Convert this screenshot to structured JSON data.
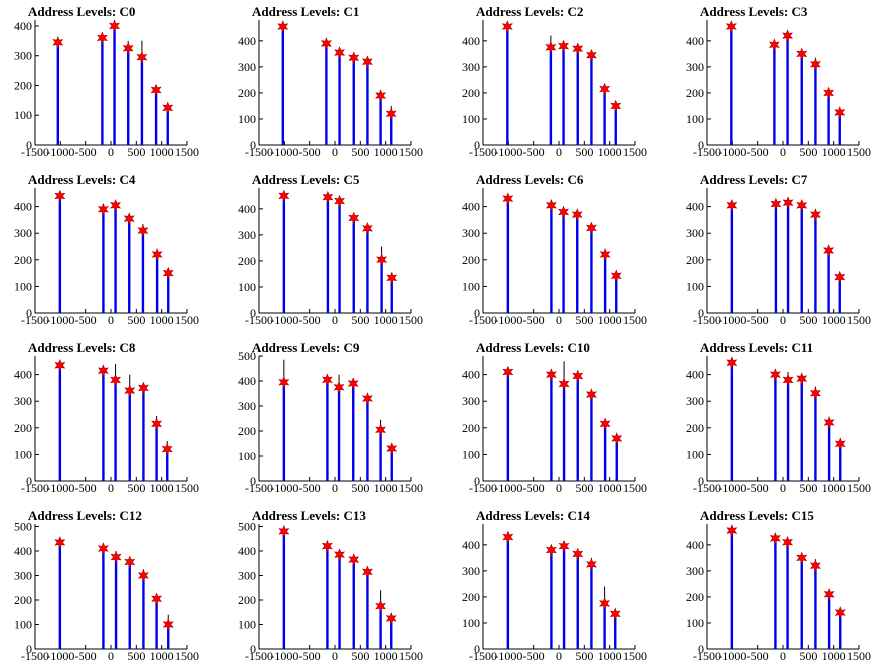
{
  "chart_data": [
    {
      "type": "bar",
      "title": "Address Levels: C0",
      "xlim": [
        -1500,
        1500
      ],
      "ylim": [
        0,
        420
      ],
      "xticks": [
        -1500,
        -1000,
        -500,
        0,
        500,
        1000,
        1500
      ],
      "yticks": [
        0,
        100,
        200,
        300,
        400
      ],
      "bars": [
        {
          "x": -1050,
          "y": 340,
          "mark": 345
        },
        {
          "x": -170,
          "y": 350,
          "mark": 360
        },
        {
          "x": 70,
          "y": 420,
          "mark": 400
        },
        {
          "x": 340,
          "y": 350,
          "mark": 325
        },
        {
          "x": 610,
          "y": 350,
          "mark": 295
        },
        {
          "x": 890,
          "y": 200,
          "mark": 185
        },
        {
          "x": 1120,
          "y": 135,
          "mark": 125
        }
      ]
    },
    {
      "type": "bar",
      "title": "Address Levels: C1",
      "xlim": [
        -1500,
        1500
      ],
      "ylim": [
        0,
        480
      ],
      "xticks": [
        -1500,
        -1000,
        -500,
        0,
        500,
        1000,
        1500
      ],
      "yticks": [
        0,
        100,
        200,
        300,
        400
      ],
      "bars": [
        {
          "x": -1030,
          "y": 470,
          "mark": 455
        },
        {
          "x": -170,
          "y": 400,
          "mark": 390
        },
        {
          "x": 90,
          "y": 370,
          "mark": 355
        },
        {
          "x": 370,
          "y": 355,
          "mark": 335
        },
        {
          "x": 640,
          "y": 335,
          "mark": 320
        },
        {
          "x": 900,
          "y": 195,
          "mark": 190
        },
        {
          "x": 1110,
          "y": 150,
          "mark": 120
        }
      ]
    },
    {
      "type": "bar",
      "title": "Address Levels: C2",
      "xlim": [
        -1500,
        1500
      ],
      "ylim": [
        0,
        480
      ],
      "xticks": [
        -1500,
        -1000,
        -500,
        0,
        500,
        1000,
        1500
      ],
      "yticks": [
        0,
        100,
        200,
        300,
        400
      ],
      "bars": [
        {
          "x": -1020,
          "y": 470,
          "mark": 455
        },
        {
          "x": -160,
          "y": 420,
          "mark": 375
        },
        {
          "x": 90,
          "y": 385,
          "mark": 380
        },
        {
          "x": 370,
          "y": 380,
          "mark": 370
        },
        {
          "x": 640,
          "y": 360,
          "mark": 345
        },
        {
          "x": 900,
          "y": 225,
          "mark": 215
        },
        {
          "x": 1120,
          "y": 155,
          "mark": 150
        }
      ]
    },
    {
      "type": "bar",
      "title": "Address Levels: C3",
      "xlim": [
        -1500,
        1500
      ],
      "ylim": [
        0,
        480
      ],
      "xticks": [
        -1500,
        -1000,
        -500,
        0,
        500,
        1000,
        1500
      ],
      "yticks": [
        0,
        100,
        200,
        300,
        400
      ],
      "bars": [
        {
          "x": -1020,
          "y": 470,
          "mark": 455
        },
        {
          "x": -170,
          "y": 395,
          "mark": 385
        },
        {
          "x": 90,
          "y": 430,
          "mark": 420
        },
        {
          "x": 370,
          "y": 360,
          "mark": 350
        },
        {
          "x": 640,
          "y": 335,
          "mark": 310
        },
        {
          "x": 900,
          "y": 210,
          "mark": 200
        },
        {
          "x": 1120,
          "y": 130,
          "mark": 125
        }
      ]
    },
    {
      "type": "bar",
      "title": "Address Levels: C4",
      "xlim": [
        -1500,
        1500
      ],
      "ylim": [
        0,
        470
      ],
      "xticks": [
        -1500,
        -1000,
        -500,
        0,
        500,
        1000,
        1500
      ],
      "yticks": [
        0,
        100,
        200,
        300,
        400
      ],
      "bars": [
        {
          "x": -1010,
          "y": 450,
          "mark": 440
        },
        {
          "x": -150,
          "y": 400,
          "mark": 390
        },
        {
          "x": 90,
          "y": 420,
          "mark": 405
        },
        {
          "x": 360,
          "y": 360,
          "mark": 355
        },
        {
          "x": 630,
          "y": 335,
          "mark": 310
        },
        {
          "x": 910,
          "y": 230,
          "mark": 220
        },
        {
          "x": 1130,
          "y": 160,
          "mark": 150
        }
      ]
    },
    {
      "type": "bar",
      "title": "Address Levels: C5",
      "xlim": [
        -1500,
        1500
      ],
      "ylim": [
        0,
        480
      ],
      "xticks": [
        -1500,
        -1000,
        -500,
        0,
        500,
        1000,
        1500
      ],
      "yticks": [
        0,
        100,
        200,
        300,
        400
      ],
      "bars": [
        {
          "x": -1010,
          "y": 460,
          "mark": 450
        },
        {
          "x": -140,
          "y": 450,
          "mark": 445
        },
        {
          "x": 90,
          "y": 440,
          "mark": 430
        },
        {
          "x": 370,
          "y": 370,
          "mark": 365
        },
        {
          "x": 640,
          "y": 330,
          "mark": 325
        },
        {
          "x": 920,
          "y": 255,
          "mark": 205
        },
        {
          "x": 1120,
          "y": 140,
          "mark": 135
        }
      ]
    },
    {
      "type": "bar",
      "title": "Address Levels: C6",
      "xlim": [
        -1500,
        1500
      ],
      "ylim": [
        0,
        470
      ],
      "xticks": [
        -1500,
        -1000,
        -500,
        0,
        500,
        1000,
        1500
      ],
      "yticks": [
        0,
        100,
        200,
        300,
        400
      ],
      "bars": [
        {
          "x": -1010,
          "y": 440,
          "mark": 430
        },
        {
          "x": -150,
          "y": 410,
          "mark": 405
        },
        {
          "x": 90,
          "y": 395,
          "mark": 380
        },
        {
          "x": 360,
          "y": 375,
          "mark": 370
        },
        {
          "x": 640,
          "y": 330,
          "mark": 320
        },
        {
          "x": 910,
          "y": 235,
          "mark": 220
        },
        {
          "x": 1130,
          "y": 150,
          "mark": 140
        }
      ]
    },
    {
      "type": "bar",
      "title": "Address Levels: C7",
      "xlim": [
        -1500,
        1500
      ],
      "ylim": [
        0,
        470
      ],
      "xticks": [
        -1500,
        -1000,
        -500,
        0,
        500,
        1000,
        1500
      ],
      "yticks": [
        0,
        100,
        200,
        300,
        400
      ],
      "bars": [
        {
          "x": -1010,
          "y": 420,
          "mark": 405
        },
        {
          "x": -140,
          "y": 410,
          "mark": 410
        },
        {
          "x": 100,
          "y": 420,
          "mark": 415
        },
        {
          "x": 370,
          "y": 400,
          "mark": 405
        },
        {
          "x": 640,
          "y": 370,
          "mark": 370
        },
        {
          "x": 900,
          "y": 245,
          "mark": 235
        },
        {
          "x": 1120,
          "y": 145,
          "mark": 135
        }
      ]
    },
    {
      "type": "bar",
      "title": "Address Levels: C8",
      "xlim": [
        -1500,
        1500
      ],
      "ylim": [
        0,
        470
      ],
      "xticks": [
        -1500,
        -1000,
        -500,
        0,
        500,
        1000,
        1500
      ],
      "yticks": [
        0,
        100,
        200,
        300,
        400
      ],
      "bars": [
        {
          "x": -1010,
          "y": 445,
          "mark": 435
        },
        {
          "x": -150,
          "y": 425,
          "mark": 415
        },
        {
          "x": 90,
          "y": 440,
          "mark": 380
        },
        {
          "x": 370,
          "y": 400,
          "mark": 340
        },
        {
          "x": 640,
          "y": 365,
          "mark": 350
        },
        {
          "x": 900,
          "y": 245,
          "mark": 215
        },
        {
          "x": 1110,
          "y": 150,
          "mark": 120
        }
      ]
    },
    {
      "type": "bar",
      "title": "Address Levels: C9",
      "xlim": [
        -1500,
        1500
      ],
      "ylim": [
        0,
        500
      ],
      "xticks": [
        -1500,
        -1000,
        -500,
        0,
        500,
        1000,
        1500
      ],
      "yticks": [
        0,
        100,
        200,
        300,
        400,
        500
      ],
      "bars": [
        {
          "x": -1010,
          "y": 485,
          "mark": 395
        },
        {
          "x": -150,
          "y": 410,
          "mark": 405
        },
        {
          "x": 80,
          "y": 425,
          "mark": 375
        },
        {
          "x": 360,
          "y": 395,
          "mark": 390
        },
        {
          "x": 640,
          "y": 345,
          "mark": 330
        },
        {
          "x": 900,
          "y": 245,
          "mark": 205
        },
        {
          "x": 1120,
          "y": 140,
          "mark": 130
        }
      ]
    },
    {
      "type": "bar",
      "title": "Address Levels: C10",
      "xlim": [
        -1500,
        1500
      ],
      "ylim": [
        0,
        470
      ],
      "xticks": [
        -1500,
        -1000,
        -500,
        0,
        500,
        1000,
        1500
      ],
      "yticks": [
        0,
        100,
        200,
        300,
        400
      ],
      "bars": [
        {
          "x": -1010,
          "y": 420,
          "mark": 410
        },
        {
          "x": -150,
          "y": 410,
          "mark": 400
        },
        {
          "x": 100,
          "y": 450,
          "mark": 365
        },
        {
          "x": 370,
          "y": 400,
          "mark": 395
        },
        {
          "x": 640,
          "y": 340,
          "mark": 325
        },
        {
          "x": 910,
          "y": 225,
          "mark": 215
        },
        {
          "x": 1140,
          "y": 170,
          "mark": 160
        }
      ]
    },
    {
      "type": "bar",
      "title": "Address Levels: C11",
      "xlim": [
        -1500,
        1500
      ],
      "ylim": [
        0,
        470
      ],
      "xticks": [
        -1500,
        -1000,
        -500,
        0,
        500,
        1000,
        1500
      ],
      "yticks": [
        0,
        100,
        200,
        300,
        400
      ],
      "bars": [
        {
          "x": -1010,
          "y": 460,
          "mark": 445
        },
        {
          "x": -150,
          "y": 410,
          "mark": 400
        },
        {
          "x": 100,
          "y": 410,
          "mark": 380
        },
        {
          "x": 370,
          "y": 395,
          "mark": 385
        },
        {
          "x": 640,
          "y": 355,
          "mark": 330
        },
        {
          "x": 910,
          "y": 235,
          "mark": 220
        },
        {
          "x": 1130,
          "y": 160,
          "mark": 140
        }
      ]
    },
    {
      "type": "bar",
      "title": "Address Levels: C12",
      "xlim": [
        -1500,
        1500
      ],
      "ylim": [
        0,
        510
      ],
      "xticks": [
        -1500,
        -1000,
        -500,
        0,
        500,
        1000,
        1500
      ],
      "yticks": [
        0,
        100,
        200,
        300,
        400,
        500
      ],
      "bars": [
        {
          "x": -1010,
          "y": 450,
          "mark": 435
        },
        {
          "x": -150,
          "y": 420,
          "mark": 410
        },
        {
          "x": 100,
          "y": 400,
          "mark": 375
        },
        {
          "x": 370,
          "y": 365,
          "mark": 355
        },
        {
          "x": 640,
          "y": 325,
          "mark": 300
        },
        {
          "x": 900,
          "y": 205,
          "mark": 205
        },
        {
          "x": 1130,
          "y": 140,
          "mark": 100
        }
      ]
    },
    {
      "type": "bar",
      "title": "Address Levels: C13",
      "xlim": [
        -1500,
        1500
      ],
      "ylim": [
        0,
        510
      ],
      "xticks": [
        -1500,
        -1000,
        -500,
        0,
        500,
        1000,
        1500
      ],
      "yticks": [
        0,
        100,
        200,
        300,
        400,
        500
      ],
      "bars": [
        {
          "x": -1010,
          "y": 500,
          "mark": 480
        },
        {
          "x": -150,
          "y": 430,
          "mark": 420
        },
        {
          "x": 90,
          "y": 400,
          "mark": 385
        },
        {
          "x": 370,
          "y": 385,
          "mark": 365
        },
        {
          "x": 640,
          "y": 330,
          "mark": 315
        },
        {
          "x": 900,
          "y": 240,
          "mark": 175
        },
        {
          "x": 1110,
          "y": 130,
          "mark": 125
        }
      ]
    },
    {
      "type": "bar",
      "title": "Address Levels: C14",
      "xlim": [
        -1500,
        1500
      ],
      "ylim": [
        0,
        480
      ],
      "xticks": [
        -1500,
        -1000,
        -500,
        0,
        500,
        1000,
        1500
      ],
      "yticks": [
        0,
        100,
        200,
        300,
        400
      ],
      "bars": [
        {
          "x": -1010,
          "y": 440,
          "mark": 430
        },
        {
          "x": -150,
          "y": 395,
          "mark": 380
        },
        {
          "x": 100,
          "y": 410,
          "mark": 395
        },
        {
          "x": 370,
          "y": 375,
          "mark": 365
        },
        {
          "x": 640,
          "y": 350,
          "mark": 325
        },
        {
          "x": 900,
          "y": 240,
          "mark": 175
        },
        {
          "x": 1110,
          "y": 150,
          "mark": 135
        }
      ]
    },
    {
      "type": "bar",
      "title": "Address Levels: C15",
      "xlim": [
        -1500,
        1500
      ],
      "ylim": [
        0,
        480
      ],
      "xticks": [
        -1500,
        -1000,
        -500,
        0,
        500,
        1000,
        1500
      ],
      "yticks": [
        0,
        100,
        200,
        300,
        400
      ],
      "bars": [
        {
          "x": -1010,
          "y": 470,
          "mark": 455
        },
        {
          "x": -150,
          "y": 440,
          "mark": 425
        },
        {
          "x": 90,
          "y": 415,
          "mark": 410
        },
        {
          "x": 370,
          "y": 365,
          "mark": 350
        },
        {
          "x": 640,
          "y": 345,
          "mark": 320
        },
        {
          "x": 910,
          "y": 220,
          "mark": 210
        },
        {
          "x": 1130,
          "y": 150,
          "mark": 140
        }
      ]
    }
  ],
  "colors": {
    "bar": "#0000ee",
    "marker": "#ff0000",
    "marker_edge": "#aa0000",
    "axis": "#000000"
  }
}
